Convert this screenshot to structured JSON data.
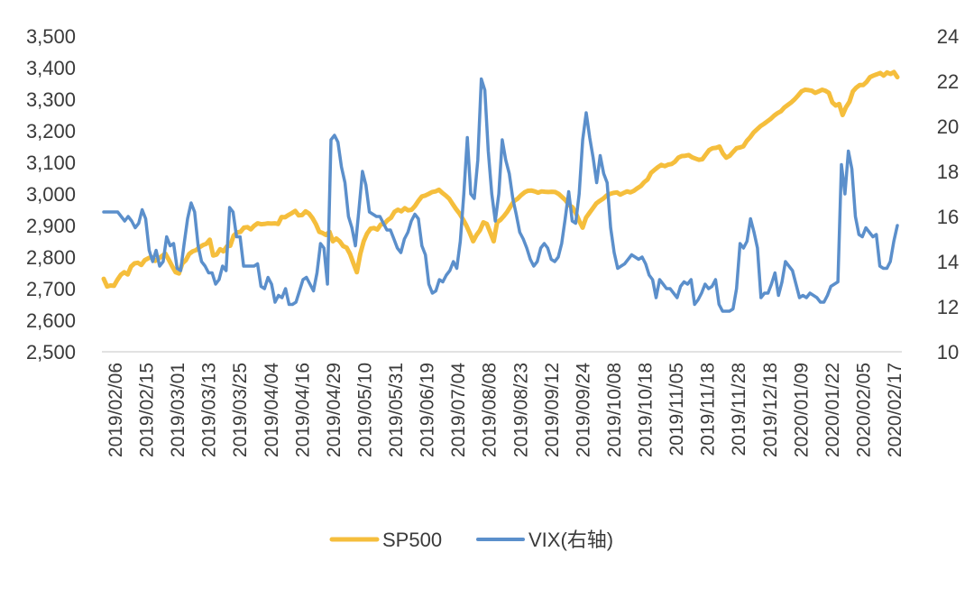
{
  "chart_data": {
    "type": "line",
    "title": "",
    "x_tick_labels": [
      "2019/02/06",
      "2019/02/15",
      "2019/03/01",
      "2019/03/13",
      "2019/03/25",
      "2019/04/04",
      "2019/04/16",
      "2019/04/29",
      "2019/05/10",
      "2019/05/31",
      "2019/06/19",
      "2019/07/04",
      "2019/08/08",
      "2019/08/23",
      "2019/09/12",
      "2019/09/24",
      "2019/10/08",
      "2019/10/18",
      "2019/11/05",
      "2019/11/18",
      "2019/11/28",
      "2019/12/18",
      "2020/01/09",
      "2020/01/22",
      "2020/02/05",
      "2020/02/17"
    ],
    "left_axis": {
      "min": 2500,
      "max": 3500,
      "ticks": [
        "2,500",
        "2,600",
        "2,700",
        "2,800",
        "2,900",
        "3,000",
        "3,100",
        "3,200",
        "3,300",
        "3,400",
        "3,500"
      ]
    },
    "right_axis": {
      "min": 10,
      "max": 24,
      "ticks": [
        "10",
        "12",
        "14",
        "16",
        "18",
        "20",
        "22",
        "24"
      ]
    },
    "colors": {
      "sp500": "#F5BE3C",
      "vix": "#5B8FCB",
      "axis": "#D9D9D9"
    },
    "series": [
      {
        "name": "SP500",
        "axis": "left",
        "values": [
          2731,
          2707,
          2710,
          2709,
          2728,
          2744,
          2752,
          2745,
          2770,
          2780,
          2782,
          2775,
          2790,
          2796,
          2800,
          2788,
          2795,
          2803,
          2811,
          2792,
          2771,
          2752,
          2748,
          2780,
          2790,
          2810,
          2818,
          2822,
          2831,
          2838,
          2842,
          2855,
          2805,
          2808,
          2825,
          2818,
          2834,
          2836,
          2868,
          2878,
          2880,
          2893,
          2895,
          2888,
          2899,
          2907,
          2904,
          2905,
          2907,
          2906,
          2907,
          2905,
          2927,
          2926,
          2933,
          2939,
          2946,
          2932,
          2933,
          2945,
          2938,
          2924,
          2905,
          2880,
          2876,
          2870,
          2880,
          2850,
          2859,
          2850,
          2835,
          2830,
          2810,
          2780,
          2752,
          2810,
          2850,
          2875,
          2890,
          2892,
          2887,
          2903,
          2905,
          2917,
          2925,
          2943,
          2950,
          2945,
          2955,
          2948,
          2950,
          2962,
          2978,
          2992,
          2995,
          3000,
          3006,
          3008,
          3013,
          3003,
          2995,
          2985,
          2968,
          2952,
          2938,
          2920,
          2900,
          2876,
          2850,
          2870,
          2885,
          2910,
          2905,
          2878,
          2850,
          2910,
          2918,
          2930,
          2944,
          2962,
          2978,
          2985,
          2996,
          3005,
          3010,
          3011,
          3008,
          3004,
          3008,
          3007,
          3006,
          3007,
          3006,
          3000,
          2990,
          2980,
          2965,
          2958,
          2940,
          2915,
          2893,
          2925,
          2940,
          2955,
          2970,
          2978,
          2985,
          2995,
          3000,
          3003,
          3005,
          2998,
          3003,
          3008,
          3005,
          3010,
          3018,
          3025,
          3037,
          3046,
          3067,
          3076,
          3085,
          3092,
          3088,
          3093,
          3095,
          3102,
          3115,
          3120,
          3121,
          3123,
          3116,
          3112,
          3108,
          3110,
          3125,
          3139,
          3145,
          3146,
          3150,
          3128,
          3115,
          3121,
          3133,
          3145,
          3147,
          3151,
          3168,
          3180,
          3195,
          3205,
          3215,
          3222,
          3230,
          3238,
          3248,
          3256,
          3262,
          3274,
          3282,
          3290,
          3300,
          3312,
          3325,
          3330,
          3329,
          3327,
          3320,
          3325,
          3330,
          3327,
          3320,
          3290,
          3280,
          3285,
          3250,
          3275,
          3292,
          3325,
          3337,
          3345,
          3345,
          3355,
          3370,
          3375,
          3379,
          3383,
          3375,
          3385,
          3380,
          3386,
          3370
        ]
      },
      {
        "name": "VIX(右轴)",
        "axis": "right",
        "values": [
          16.2,
          16.2,
          16.2,
          16.2,
          16.2,
          16.0,
          15.8,
          16.0,
          15.8,
          15.5,
          15.7,
          16.3,
          15.9,
          14.5,
          14.0,
          14.5,
          13.8,
          14.0,
          15.1,
          14.7,
          14.8,
          13.7,
          13.6,
          14.8,
          15.9,
          16.6,
          16.2,
          14.7,
          14.0,
          13.8,
          13.5,
          13.5,
          13.0,
          13.2,
          13.8,
          13.6,
          16.4,
          16.2,
          15.1,
          15.1,
          13.8,
          13.8,
          13.8,
          13.8,
          13.9,
          12.9,
          12.8,
          13.3,
          13.0,
          12.2,
          12.5,
          12.4,
          12.8,
          12.1,
          12.1,
          12.2,
          12.7,
          13.2,
          13.3,
          13.0,
          12.7,
          13.5,
          14.8,
          14.6,
          13.0,
          19.4,
          19.6,
          19.3,
          18.2,
          17.5,
          16.0,
          15.5,
          14.7,
          16.3,
          18.0,
          17.4,
          16.2,
          16.1,
          16.0,
          16.0,
          15.7,
          15.4,
          15.4,
          15.0,
          14.6,
          14.4,
          15.0,
          15.3,
          15.8,
          16.1,
          15.9,
          14.7,
          14.3,
          13.0,
          12.6,
          12.7,
          13.2,
          13.1,
          13.4,
          13.6,
          14.0,
          13.7,
          14.9,
          17.0,
          19.5,
          17.0,
          16.8,
          18.5,
          22.1,
          21.6,
          18.9,
          17.0,
          15.8,
          17.0,
          19.4,
          18.5,
          17.9,
          16.8,
          16.1,
          15.3,
          15.0,
          14.6,
          14.1,
          13.8,
          14.0,
          14.6,
          14.8,
          14.6,
          14.1,
          14.0,
          14.2,
          14.8,
          15.9,
          17.1,
          15.8,
          15.7,
          17.0,
          19.4,
          20.6,
          19.5,
          18.6,
          17.5,
          18.7,
          17.9,
          17.5,
          15.5,
          14.4,
          13.7,
          13.8,
          13.9,
          14.1,
          14.3,
          14.2,
          14.1,
          14.2,
          13.9,
          13.4,
          13.2,
          12.4,
          13.2,
          13.0,
          12.8,
          12.8,
          12.6,
          12.4,
          12.9,
          13.1,
          13.0,
          13.2,
          12.1,
          12.3,
          12.6,
          13.0,
          12.8,
          12.9,
          13.2,
          12.1,
          11.8,
          11.8,
          11.8,
          11.9,
          12.8,
          14.8,
          14.6,
          14.9,
          15.9,
          15.3,
          14.6,
          12.4,
          12.6,
          12.6,
          13.0,
          13.5,
          12.5,
          13.1,
          14.0,
          13.8,
          13.6,
          13.0,
          12.4,
          12.5,
          12.4,
          12.6,
          12.5,
          12.4,
          12.2,
          12.2,
          12.5,
          12.9,
          13.0,
          13.1,
          18.3,
          17.0,
          18.9,
          18.1,
          16.0,
          15.2,
          15.1,
          15.5,
          15.3,
          15.1,
          15.2,
          13.8,
          13.7,
          13.7,
          14.0,
          14.9,
          15.6
        ]
      }
    ],
    "legend": {
      "position": "bottom",
      "entries": [
        "SP500",
        "VIX(右轴)"
      ]
    }
  }
}
